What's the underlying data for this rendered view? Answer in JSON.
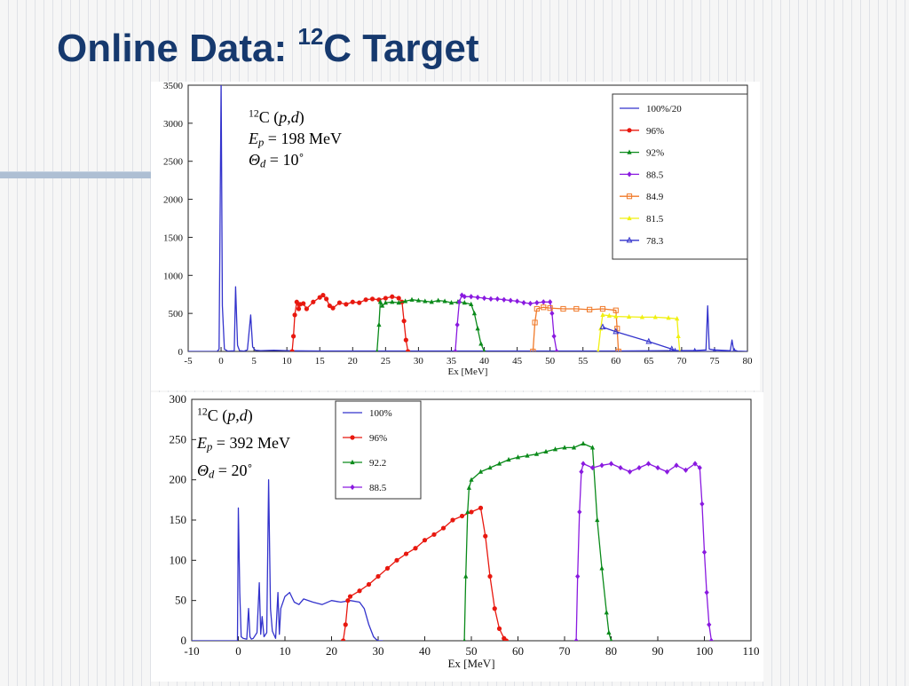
{
  "slide": {
    "title_prefix": "Online Data: ",
    "title_sup": "12",
    "title_suffix": "C Target",
    "title_color": "#16396e"
  },
  "chart_data": [
    {
      "type": "line",
      "xlabel": "Ex [MeV]",
      "xlim": [
        -5,
        80
      ],
      "ylim": [
        0,
        3500
      ],
      "xticks": [
        -5,
        0,
        5,
        10,
        15,
        20,
        25,
        30,
        35,
        40,
        45,
        50,
        55,
        60,
        65,
        70,
        75,
        80
      ],
      "yticks": [
        0,
        500,
        1000,
        1500,
        2000,
        2500,
        3000,
        3500
      ],
      "grid": false,
      "legend_position": "top-right",
      "annotation": {
        "reaction_sup": "12",
        "reaction_c": "C (",
        "reaction_p": "p",
        "reaction_comma": ",",
        "reaction_d": "d",
        "reaction_close": ")",
        "ep_sym": "E",
        "ep_sub": "p",
        "ep_val": " = 198 MeV",
        "th_sym": "Θ",
        "th_sub": "d",
        "th_val": " = 10˚"
      },
      "series": [
        {
          "name": "100%/20",
          "color": "#3333cc",
          "marker": "none",
          "x": [
            -5,
            -0.6,
            -0.3,
            0,
            0.2,
            0.5,
            1,
            2,
            2.2,
            2.5,
            2.8,
            3.5,
            4,
            4.5,
            4.8,
            5.2,
            6,
            8,
            10,
            11,
            15,
            20,
            30,
            40,
            50,
            60,
            65,
            68,
            72,
            73.7,
            73.95,
            74.2,
            75,
            76,
            77.4,
            77.65,
            77.9,
            78.5,
            80
          ],
          "y": [
            0,
            0,
            30,
            3540,
            600,
            30,
            5,
            8,
            850,
            80,
            10,
            5,
            20,
            480,
            60,
            15,
            10,
            15,
            10,
            8,
            6,
            6,
            6,
            6,
            6,
            6,
            8,
            10,
            12,
            20,
            600,
            30,
            20,
            15,
            10,
            150,
            20,
            5,
            0
          ]
        },
        {
          "name": "96%",
          "color": "#e8180f",
          "marker": "circle",
          "x": [
            10.8,
            11,
            11.2,
            11.5,
            11.8,
            12,
            12.5,
            13,
            14,
            15,
            15.5,
            16,
            16.5,
            17,
            18,
            19,
            20,
            21,
            22,
            23,
            24,
            25,
            26,
            27,
            27.5,
            27.8,
            28.1,
            28.4
          ],
          "y": [
            0,
            200,
            480,
            650,
            560,
            620,
            630,
            560,
            650,
            710,
            740,
            690,
            600,
            570,
            640,
            620,
            650,
            640,
            680,
            690,
            680,
            700,
            720,
            700,
            650,
            400,
            150,
            0
          ]
        },
        {
          "name": "92%",
          "color": "#0a8a1a",
          "marker": "triangle",
          "x": [
            23.7,
            24,
            24.2,
            24.5,
            25,
            26,
            27,
            28,
            29,
            30,
            31,
            32,
            33,
            34,
            35,
            36,
            37,
            38,
            38.5,
            39,
            39.5,
            40
          ],
          "y": [
            0,
            350,
            650,
            600,
            640,
            650,
            640,
            660,
            680,
            670,
            660,
            650,
            670,
            660,
            640,
            650,
            640,
            620,
            500,
            300,
            100,
            0
          ]
        },
        {
          "name": "88.5",
          "color": "#8a1ae0",
          "marker": "diamond",
          "x": [
            35.6,
            35.9,
            36.2,
            36.6,
            37,
            38,
            39,
            40,
            41,
            42,
            43,
            44,
            45,
            46,
            47,
            48,
            49,
            50,
            50.3,
            50.6,
            51
          ],
          "y": [
            0,
            350,
            650,
            740,
            720,
            720,
            710,
            700,
            690,
            690,
            680,
            670,
            660,
            640,
            630,
            640,
            650,
            650,
            500,
            200,
            0
          ]
        },
        {
          "name": "84.9",
          "color": "#f07a2a",
          "marker": "square",
          "x": [
            47.4,
            47.7,
            48,
            49,
            50,
            52,
            54,
            56,
            58,
            60,
            60.2,
            60.4
          ],
          "y": [
            0,
            380,
            560,
            580,
            570,
            560,
            560,
            550,
            560,
            540,
            300,
            0
          ]
        },
        {
          "name": "81.5",
          "color": "#f0f010",
          "marker": "triangle",
          "x": [
            57.3,
            57.7,
            58,
            59,
            60,
            62,
            64,
            66,
            68,
            69.3,
            69.5,
            69.7
          ],
          "y": [
            0,
            300,
            480,
            470,
            460,
            455,
            450,
            450,
            440,
            430,
            200,
            0
          ]
        },
        {
          "name": "78.3",
          "color": "#3333cc",
          "marker": "triangle-open",
          "x": [
            58,
            60,
            65,
            68.5,
            69,
            72,
            75,
            78
          ],
          "y": [
            320,
            260,
            130,
            30,
            0,
            0,
            0,
            0
          ]
        }
      ]
    },
    {
      "type": "line",
      "xlabel": "Ex [MeV]",
      "xlim": [
        -10,
        110
      ],
      "ylim": [
        0,
        300
      ],
      "xticks": [
        -10,
        0,
        10,
        20,
        30,
        40,
        50,
        60,
        70,
        80,
        90,
        100,
        110
      ],
      "yticks": [
        0,
        50,
        100,
        150,
        200,
        250,
        300
      ],
      "grid": false,
      "legend_position": "top-center",
      "annotation": {
        "reaction_sup": "12",
        "reaction_c": "C (",
        "reaction_p": "p",
        "reaction_comma": ",",
        "reaction_d": "d",
        "reaction_close": ")",
        "ep_sym": "E",
        "ep_sub": "p",
        "ep_val": " = 392 MeV",
        "th_sym": "Θ",
        "th_sub": "d",
        "th_val": " = 20˚"
      },
      "series": [
        {
          "name": "100%",
          "color": "#3333cc",
          "marker": "none",
          "x": [
            -10,
            -0.5,
            -0.2,
            0,
            0.3,
            0.6,
            1,
            1.8,
            2.2,
            2.5,
            2.8,
            3.2,
            4,
            4.5,
            4.8,
            5.1,
            5.5,
            6.1,
            6.5,
            6.9,
            7.3,
            8,
            8.5,
            8.8,
            9.1,
            10,
            11,
            12,
            13,
            14,
            16,
            18,
            20,
            22,
            24,
            26,
            27,
            28,
            29,
            29.5,
            30,
            31
          ],
          "y": [
            0,
            0,
            0,
            165,
            60,
            5,
            3,
            2,
            40,
            5,
            2,
            3,
            10,
            72,
            8,
            30,
            5,
            10,
            200,
            40,
            12,
            3,
            60,
            8,
            40,
            55,
            60,
            48,
            45,
            52,
            48,
            45,
            50,
            48,
            50,
            48,
            40,
            20,
            5,
            2,
            0,
            0
          ]
        },
        {
          "name": "96%",
          "color": "#e8180f",
          "marker": "circle",
          "x": [
            22.5,
            23,
            23.5,
            24,
            26,
            28,
            30,
            32,
            34,
            36,
            38,
            40,
            42,
            44,
            46,
            48,
            50,
            52,
            53,
            54,
            55,
            56,
            57,
            57.5
          ],
          "y": [
            0,
            20,
            50,
            55,
            62,
            70,
            80,
            90,
            100,
            108,
            115,
            125,
            132,
            140,
            150,
            155,
            160,
            165,
            130,
            80,
            40,
            15,
            3,
            0
          ]
        },
        {
          "name": "92.2",
          "color": "#0a8a1a",
          "marker": "triangle",
          "x": [
            48.5,
            48.8,
            49.2,
            49.5,
            50,
            52,
            54,
            56,
            58,
            60,
            62,
            64,
            66,
            68,
            70,
            72,
            74,
            76,
            77,
            78,
            79,
            79.5,
            80
          ],
          "y": [
            0,
            80,
            160,
            190,
            200,
            210,
            215,
            220,
            225,
            228,
            230,
            232,
            235,
            238,
            240,
            240,
            245,
            240,
            150,
            90,
            35,
            10,
            0
          ]
        },
        {
          "name": "88.5",
          "color": "#8a1ae0",
          "marker": "diamond",
          "x": [
            72.5,
            72.8,
            73.2,
            73.6,
            74,
            76,
            78,
            80,
            82,
            84,
            86,
            88,
            90,
            92,
            94,
            96,
            98,
            99,
            99.5,
            100,
            100.5,
            101,
            101.5
          ],
          "y": [
            0,
            80,
            160,
            210,
            220,
            215,
            218,
            220,
            215,
            210,
            215,
            220,
            215,
            210,
            218,
            212,
            220,
            215,
            170,
            110,
            60,
            20,
            0
          ]
        }
      ]
    }
  ]
}
